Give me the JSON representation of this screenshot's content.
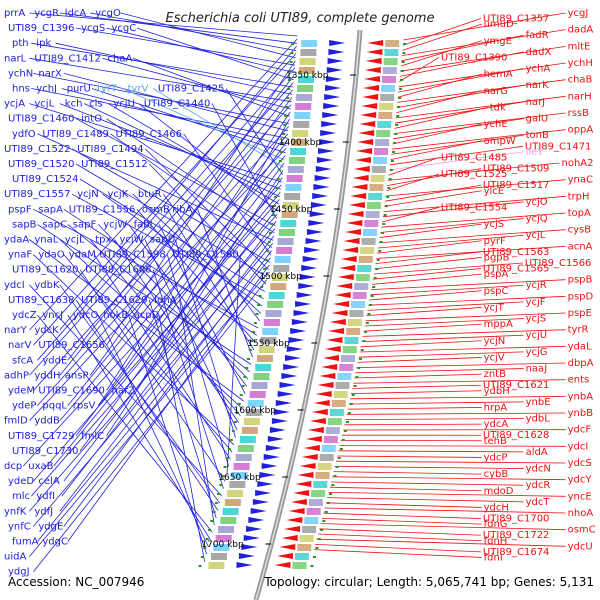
{
  "title": "Escherichia coli UTI89, complete genome",
  "accession": "Accession: NC_007946",
  "topology": "Topology: circular; Length: 5,065,741 bp; Genes: 5,131",
  "colors": {
    "forward": "#2020dd",
    "reverse": "#ee1111",
    "faint": "#55aaee",
    "faint_red": "#ee99ee",
    "axis": "#888888",
    "tick_mark": "#229922"
  },
  "kbp_ticks": [
    "1350 kbp",
    "1400 kbp",
    "1450 kbp",
    "1500 kbp",
    "1550 kbp",
    "1600 kbp",
    "1650 kbp",
    "1700 kbp"
  ],
  "left_labels": [
    {
      "text": "prrA",
      "row": 0
    },
    {
      "text": "ycgR",
      "row": 0
    },
    {
      "text": "ldcA",
      "row": 0
    },
    {
      "text": "ycgO",
      "row": 0
    },
    {
      "text": "UTI89_C1396",
      "row": 1
    },
    {
      "text": "ycgS",
      "row": 1
    },
    {
      "text": "ycgC",
      "row": 1
    },
    {
      "text": "pth",
      "row": 2
    },
    {
      "text": "ipk",
      "row": 2
    },
    {
      "text": "narL",
      "row": 3
    },
    {
      "text": "UTI89_C1412",
      "row": 3
    },
    {
      "text": "chaA",
      "row": 3
    },
    {
      "text": "ychN",
      "row": 4
    },
    {
      "text": "narX",
      "row": 4
    },
    {
      "text": "hns",
      "row": 5
    },
    {
      "text": "ychJ",
      "row": 5
    },
    {
      "text": "purU",
      "row": 5
    },
    {
      "text": "tyrT",
      "row": 5,
      "faint": true
    },
    {
      "text": "tyrV",
      "row": 5,
      "faint": true
    },
    {
      "text": "UTI89_C1425",
      "row": 5
    },
    {
      "text": "ycjA",
      "row": 6
    },
    {
      "text": "ycjL",
      "row": 6
    },
    {
      "text": "kch",
      "row": 6
    },
    {
      "text": "cls",
      "row": 6
    },
    {
      "text": "ycjU",
      "row": 6
    },
    {
      "text": "UTI89_C1440",
      "row": 6
    },
    {
      "text": "UTI89_C1460",
      "row": 7
    },
    {
      "text": "intO",
      "row": 7
    },
    {
      "text": "ydfO",
      "row": 8
    },
    {
      "text": "UTI89_C1489",
      "row": 8
    },
    {
      "text": "UTI89_C1466",
      "row": 8
    },
    {
      "text": "UTI89_C1522",
      "row": 9
    },
    {
      "text": "UTI89_C1494",
      "row": 9
    },
    {
      "text": "UTI89_C1520",
      "row": 10
    },
    {
      "text": "UTI89_C1512",
      "row": 10
    },
    {
      "text": "UTI89_C1524",
      "row": 11
    },
    {
      "text": "UTI89_C1557",
      "row": 12
    },
    {
      "text": "ycjN",
      "row": 12
    },
    {
      "text": "ycjK",
      "row": 12
    },
    {
      "text": "btuR",
      "row": 12
    },
    {
      "text": "pspF",
      "row": 13
    },
    {
      "text": "sapA",
      "row": 13
    },
    {
      "text": "UTI89_C1556",
      "row": 13
    },
    {
      "text": "osmB",
      "row": 13
    },
    {
      "text": "ribA",
      "row": 13
    },
    {
      "text": "sapB",
      "row": 14
    },
    {
      "text": "sapC",
      "row": 14
    },
    {
      "text": "sapF",
      "row": 14
    },
    {
      "text": "ycjW",
      "row": 14
    },
    {
      "text": "fabI",
      "row": 14
    },
    {
      "text": "ydaA",
      "row": 15
    },
    {
      "text": "ynaL",
      "row": 15
    },
    {
      "text": "ycjL",
      "row": 15
    },
    {
      "text": "tpx",
      "row": 15
    },
    {
      "text": "ycjW",
      "row": 15
    },
    {
      "text": "sapD",
      "row": 15
    },
    {
      "text": "ynaF",
      "row": 16
    },
    {
      "text": "ydaO",
      "row": 16
    },
    {
      "text": "ydaM",
      "row": 16
    },
    {
      "text": "UTI89_C1598",
      "row": 16
    },
    {
      "text": "UTI89_C1580",
      "row": 16
    },
    {
      "text": "UTI89_C1620",
      "row": 17
    },
    {
      "text": "UTI89_C1608",
      "row": 17
    },
    {
      "text": "ydcI",
      "row": 18
    },
    {
      "text": "ydbK",
      "row": 18
    },
    {
      "text": "UTI89_C1638",
      "row": 19
    },
    {
      "text": "UTI89_C1629",
      "row": 19
    },
    {
      "text": "ldhA",
      "row": 19
    },
    {
      "text": "ydcZ",
      "row": 20
    },
    {
      "text": "yncJ",
      "row": 20
    },
    {
      "text": "ydcO",
      "row": 20
    },
    {
      "text": "hokB",
      "row": 20
    },
    {
      "text": "acpD",
      "row": 20
    },
    {
      "text": "narY",
      "row": 21
    },
    {
      "text": "ydcK",
      "row": 21
    },
    {
      "text": "narV",
      "row": 22
    },
    {
      "text": "UTI89_C1656",
      "row": 22
    },
    {
      "text": "sfcA",
      "row": 23
    },
    {
      "text": "yddE",
      "row": 23
    },
    {
      "text": "adhP",
      "row": 24
    },
    {
      "text": "yddH",
      "row": 24
    },
    {
      "text": "ansP",
      "row": 24
    },
    {
      "text": "ydeM",
      "row": 25
    },
    {
      "text": "UTI89_C1690",
      "row": 25
    },
    {
      "text": "narZ",
      "row": 25
    },
    {
      "text": "ydeP",
      "row": 26
    },
    {
      "text": "pqqL",
      "row": 26
    },
    {
      "text": "rpsV",
      "row": 26
    },
    {
      "text": "fmlD",
      "row": 27
    },
    {
      "text": "yddB",
      "row": 27
    },
    {
      "text": "UTI89_C1729",
      "row": 28
    },
    {
      "text": "fmlC",
      "row": 28
    },
    {
      "text": "UTI89_C1730",
      "row": 29
    },
    {
      "text": "dcp",
      "row": 30
    },
    {
      "text": "uxaB",
      "row": 30
    },
    {
      "text": "ydeD",
      "row": 31
    },
    {
      "text": "celA",
      "row": 31
    },
    {
      "text": "mlc",
      "row": 32
    },
    {
      "text": "ydfI",
      "row": 32
    },
    {
      "text": "ynfK",
      "row": 33
    },
    {
      "text": "ydfJ",
      "row": 33
    },
    {
      "text": "ynfC",
      "row": 34
    },
    {
      "text": "ydgE",
      "row": 34
    },
    {
      "text": "fumA",
      "row": 35
    },
    {
      "text": "ydgC",
      "row": 35
    },
    {
      "text": "uidA",
      "row": 36
    },
    {
      "text": "ydgJ",
      "row": 37
    }
  ],
  "right_labels": [
    "ycgJ",
    "UTI89_C1357",
    "umuD",
    "dadA",
    "fadR",
    "ymgE",
    "mltE",
    "dadX",
    "UTI89_C1390",
    "ychH",
    "ychA",
    "hemA",
    "chaB",
    "narK",
    "narG",
    "narH",
    "narJ",
    "tdk",
    "rssB",
    "galU",
    "ychE",
    "oppA",
    "tonB",
    "ompW",
    "UTI89_C1471",
    "ileY",
    "UTI89_C1485",
    "nohA2",
    "UTI89_C1509",
    "UTI89_C1525",
    "ynaC",
    "UTI89_C1517",
    "ylcE",
    "trpH",
    "ycjO",
    "UTI89_C1554",
    "topA",
    "ycjQ",
    "ycjS",
    "cysB",
    "ycjL",
    "pyrF",
    "acnA",
    "UTI89_C1563",
    "pgpB",
    "UTI89_C1566",
    "UTI89_C1565",
    "pspA",
    "pspB",
    "ycjR",
    "pspC",
    "pspD",
    "ycjF",
    "ycjT",
    "pspE",
    "ycjS",
    "mppA",
    "tyrR",
    "ycjU",
    "ycjN",
    "ydaL",
    "ycjG",
    "ycjV",
    "dbpA",
    "naaJ",
    "zntB",
    "ents",
    "UTI89_C1621",
    "ydbH",
    "ynbA",
    "ynbE",
    "hrpA",
    "ynbB",
    "ydbL",
    "ydcA",
    "ydcF",
    "UTI89_C1628",
    "tehB",
    "ydcI",
    "aldA",
    "ydcP",
    "ydcS",
    "ydcN",
    "cybB",
    "ydcY",
    "ydcR",
    "mdoD",
    "yncE",
    "ydcT",
    "ydcH",
    "nhoA",
    "UTI89_C1700",
    "fdnG",
    "osmC",
    "UTI89_C1722",
    "fdnH",
    "ydcU",
    "UTI89_C1674",
    "fdnI"
  ]
}
